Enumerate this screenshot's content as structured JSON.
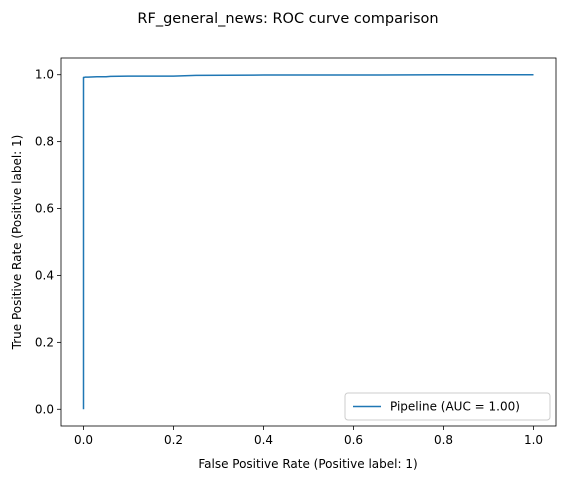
{
  "chart_data": {
    "type": "line",
    "title": "RF_general_news: ROC curve comparison",
    "xlabel": "False Positive Rate (Positive label: 1)",
    "ylabel": "True Positive Rate (Positive label: 1)",
    "xlim": [
      -0.05,
      1.05
    ],
    "ylim": [
      -0.05,
      1.05
    ],
    "xticks": [
      0.0,
      0.2,
      0.4,
      0.6,
      0.8,
      1.0
    ],
    "yticks": [
      0.0,
      0.2,
      0.4,
      0.6,
      0.8,
      1.0
    ],
    "xtick_labels": [
      "0.0",
      "0.2",
      "0.4",
      "0.6",
      "0.8",
      "1.0"
    ],
    "ytick_labels": [
      "0.0",
      "0.2",
      "0.4",
      "0.6",
      "0.8",
      "1.0"
    ],
    "grid": false,
    "legend_position": "lower-right",
    "series": [
      {
        "name": "Pipeline (AUC = 1.00)",
        "color": "#1f77b4",
        "x": [
          0.0,
          0.0,
          0.002,
          0.004,
          0.01,
          0.03,
          0.05,
          0.06,
          0.1,
          0.2,
          0.25,
          0.4,
          0.6,
          0.8,
          1.0
        ],
        "y": [
          0.0,
          0.992,
          0.992,
          0.993,
          0.993,
          0.994,
          0.994,
          0.995,
          0.996,
          0.996,
          0.998,
          0.999,
          0.999,
          1.0,
          1.0
        ]
      }
    ]
  }
}
